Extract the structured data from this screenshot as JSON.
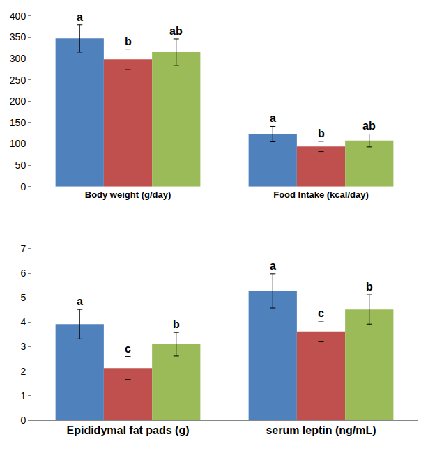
{
  "chart_data": [
    {
      "type": "bar",
      "categories": [
        "Body weight (g/day)",
        "Food Intake (kcal/day)"
      ],
      "series": [
        {
          "color": "#4f81bd",
          "values": [
            347,
            123
          ],
          "error": [
            32,
            18
          ],
          "letters": [
            "a",
            "a"
          ]
        },
        {
          "color": "#c0504d",
          "values": [
            298,
            94
          ],
          "error": [
            24,
            12
          ],
          "letters": [
            "b",
            "b"
          ]
        },
        {
          "color": "#9bbb59",
          "values": [
            315,
            108
          ],
          "error": [
            31,
            15
          ],
          "letters": [
            "ab",
            "ab"
          ]
        }
      ],
      "ylim": [
        0,
        400
      ],
      "yticks": [
        0,
        50,
        100,
        150,
        200,
        250,
        300,
        350,
        400
      ],
      "grid": false
    },
    {
      "type": "bar",
      "categories": [
        "Epididymal fat pads (g)",
        "serum leptin (ng/mL)"
      ],
      "series": [
        {
          "color": "#4f81bd",
          "values": [
            3.92,
            5.28
          ],
          "error": [
            0.6,
            0.7
          ],
          "letters": [
            "a",
            "a"
          ]
        },
        {
          "color": "#c0504d",
          "values": [
            2.13,
            3.62
          ],
          "error": [
            0.47,
            0.42
          ],
          "letters": [
            "c",
            "c"
          ]
        },
        {
          "color": "#9bbb59",
          "values": [
            3.1,
            4.52
          ],
          "error": [
            0.48,
            0.6
          ],
          "letters": [
            "b",
            "b"
          ]
        }
      ],
      "ylim": [
        0,
        7
      ],
      "yticks": [
        0,
        1,
        2,
        3,
        4,
        5,
        6,
        7
      ],
      "grid": false
    }
  ]
}
